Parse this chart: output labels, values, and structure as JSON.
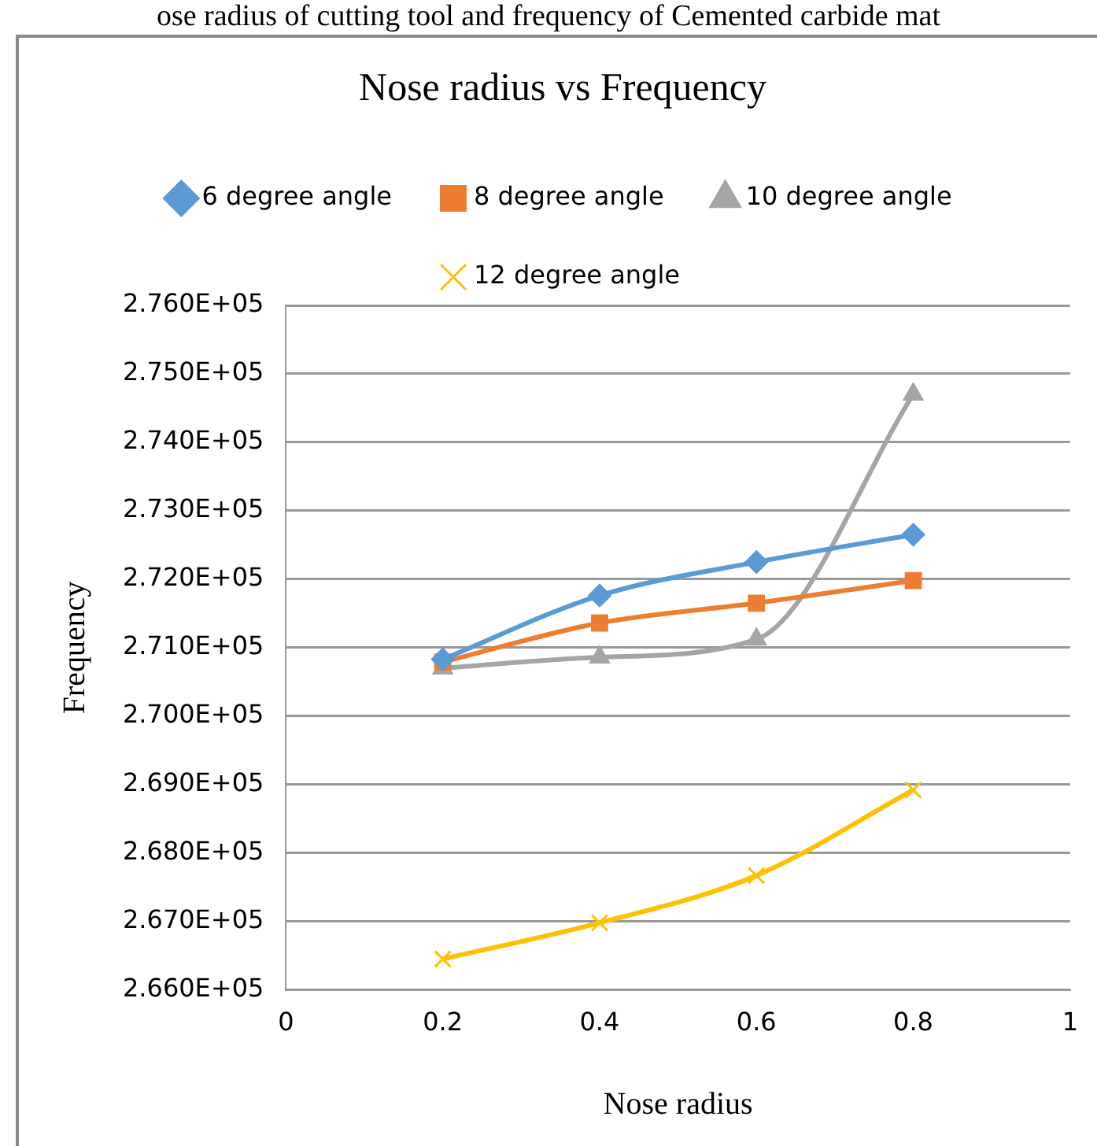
{
  "chart_data": {
    "type": "line",
    "title": "Nose radius vs Frequency",
    "xlabel": "Nose radius",
    "ylabel": "Frequency",
    "annotations": [
      "ose radius of cutting tool and frequency of Cemented carbide mat"
    ],
    "x": [
      0.2,
      0.4,
      0.6,
      0.8
    ],
    "series": [
      {
        "name": "6 degree angle",
        "color": "#5b9bd5",
        "marker": "diamond",
        "values": [
          270830,
          271760,
          272250,
          272650
        ]
      },
      {
        "name": "8 degree angle",
        "color": "#ed7d31",
        "marker": "square",
        "values": [
          270790,
          271360,
          271650,
          271980
        ]
      },
      {
        "name": "10 degree angle",
        "color": "#a5a5a5",
        "marker": "triangle",
        "values": [
          270700,
          270860,
          271120,
          274700
        ]
      },
      {
        "name": "12 degree angle",
        "color": "#ffc000",
        "marker": "cross",
        "values": [
          266450,
          266980,
          267670,
          268920
        ]
      }
    ],
    "xlim": [
      0,
      1
    ],
    "xticks": [
      0,
      0.2,
      0.4,
      0.6,
      0.8,
      1
    ],
    "ylim": [
      266000,
      276000
    ],
    "yticks": [
      {
        "value": 266000,
        "label": "2.660E+05"
      },
      {
        "value": 267000,
        "label": "2.670E+05"
      },
      {
        "value": 268000,
        "label": "2.680E+05"
      },
      {
        "value": 269000,
        "label": "2.690E+05"
      },
      {
        "value": 270000,
        "label": "2.700E+05"
      },
      {
        "value": 271000,
        "label": "2.710E+05"
      },
      {
        "value": 272000,
        "label": "2.720E+05"
      },
      {
        "value": 273000,
        "label": "2.730E+05"
      },
      {
        "value": 274000,
        "label": "2.740E+05"
      },
      {
        "value": 275000,
        "label": "2.750E+05"
      },
      {
        "value": 276000,
        "label": "2.760E+05"
      }
    ],
    "grid": "y",
    "legend": "top"
  }
}
